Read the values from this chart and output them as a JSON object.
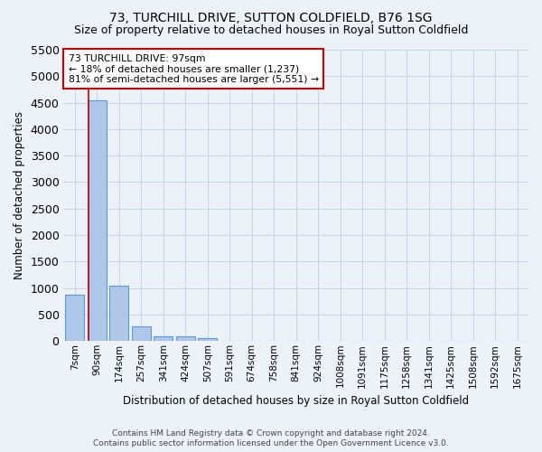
{
  "title": "73, TURCHILL DRIVE, SUTTON COLDFIELD, B76 1SG",
  "subtitle": "Size of property relative to detached houses in Royal Sutton Coldfield",
  "xlabel": "Distribution of detached houses by size in Royal Sutton Coldfield",
  "ylabel": "Number of detached properties",
  "footnote1": "Contains HM Land Registry data © Crown copyright and database right 2024.",
  "footnote2": "Contains public sector information licensed under the Open Government Licence v3.0.",
  "bin_labels": [
    "7sqm",
    "90sqm",
    "174sqm",
    "257sqm",
    "341sqm",
    "424sqm",
    "507sqm",
    "591sqm",
    "674sqm",
    "758sqm",
    "841sqm",
    "924sqm",
    "1008sqm",
    "1091sqm",
    "1175sqm",
    "1258sqm",
    "1341sqm",
    "1425sqm",
    "1508sqm",
    "1592sqm",
    "1675sqm"
  ],
  "bar_values": [
    875,
    4550,
    1050,
    275,
    90,
    80,
    55,
    0,
    0,
    0,
    0,
    0,
    0,
    0,
    0,
    0,
    0,
    0,
    0,
    0,
    0
  ],
  "bar_color": "#aec6e8",
  "bar_edge_color": "#5b9bd5",
  "grid_color": "#c8d4e8",
  "background_color": "#edf2f9",
  "annotation_line1": "73 TURCHILL DRIVE: 97sqm",
  "annotation_line2": "← 18% of detached houses are smaller (1,237)",
  "annotation_line3": "81% of semi-detached houses are larger (5,551) →",
  "annotation_box_color": "#ffffff",
  "annotation_border_color": "#cc0000",
  "red_line_color": "#cc0000",
  "ylim": [
    0,
    5500
  ],
  "yticks": [
    0,
    500,
    1000,
    1500,
    2000,
    2500,
    3000,
    3500,
    4000,
    4500,
    5000,
    5500
  ],
  "title_fontsize": 10,
  "subtitle_fontsize": 9
}
